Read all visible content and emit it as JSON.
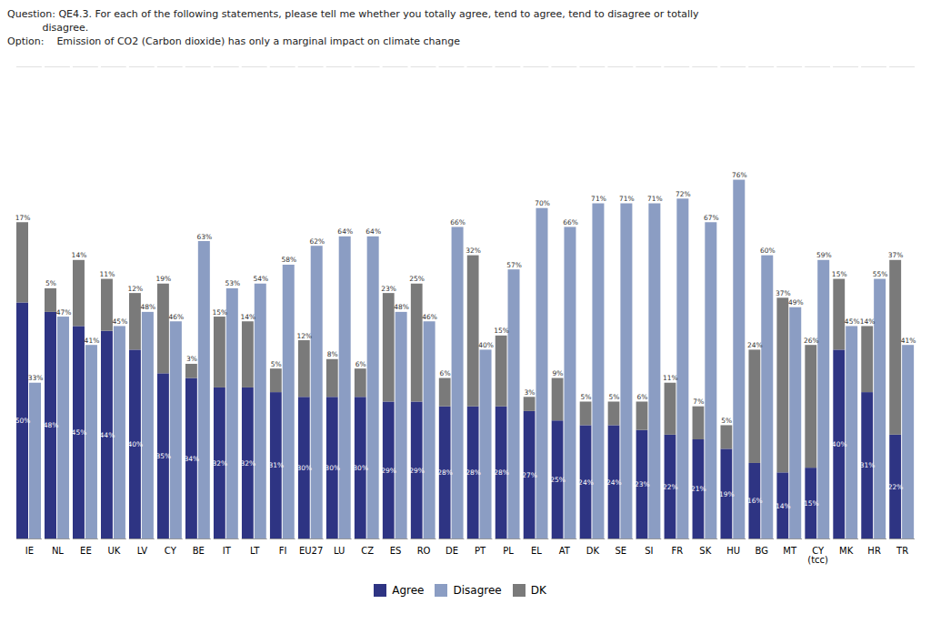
{
  "chart_data": {
    "type": "bar",
    "title": [
      "Question: QE4.3. For each of the following statements, please tell me whether you totally agree, tend to agree, tend to disagree or totally",
      "           disagree."
    ],
    "subtitle": "Option:    Emission of CO2 (Carbon dioxide) has only a marginal impact on climate change",
    "categories": [
      "IE",
      "NL",
      "EE",
      "UK",
      "LV",
      "CY",
      "BE",
      "IT",
      "LT",
      "FI",
      "EU27",
      "LU",
      "CZ",
      "ES",
      "RO",
      "DE",
      "PT",
      "PL",
      "EL",
      "AT",
      "DK",
      "SE",
      "SI",
      "FR",
      "SK",
      "HU",
      "BG",
      "MT",
      "CY\n(tcc)",
      "MK",
      "HR",
      "TR"
    ],
    "series": [
      {
        "name": "Agree",
        "color": "#2E3483",
        "stacked": true,
        "values": [
          50,
          48,
          45,
          44,
          40,
          35,
          34,
          32,
          32,
          31,
          30,
          30,
          30,
          29,
          29,
          28,
          28,
          28,
          27,
          25,
          24,
          24,
          23,
          22,
          21,
          19,
          16,
          14,
          15,
          40,
          31,
          22
        ],
        "value_labels": [
          "50%",
          "48%",
          "45%",
          "44%",
          "40%",
          "35%",
          "34%",
          "32%",
          "32%",
          "31%",
          "30%",
          "30%",
          "30%",
          "29%",
          "29%",
          "28%",
          "28%",
          "28%",
          "27%",
          "25%",
          "24%",
          "24%",
          "23%",
          "22%",
          "21%",
          "19%",
          "16%",
          "14%",
          "15%",
          "40%",
          "31%",
          "22%"
        ]
      },
      {
        "name": "Disagree",
        "color": "#8B9DC3",
        "stacked": false,
        "values": [
          33,
          47,
          41,
          45,
          48,
          46,
          63,
          53,
          54,
          58,
          62,
          64,
          64,
          48,
          46,
          66,
          40,
          57,
          70,
          66,
          71,
          71,
          71,
          72,
          67,
          76,
          60,
          49,
          59,
          45,
          55,
          41
        ],
        "value_labels": [
          "33%",
          "47%",
          "41%",
          "45%",
          "48%",
          "46%",
          "63%",
          "53%",
          "54%",
          "58%",
          "62%",
          "64%",
          "64%",
          "48%",
          "46%",
          "66%",
          "40%",
          "57%",
          "70%",
          "66%",
          "71%",
          "71%",
          "71%",
          "72%",
          "67%",
          "76%",
          "60%",
          "49%",
          "59%",
          "45%",
          "55%",
          "41%"
        ]
      },
      {
        "name": "DK",
        "color": "#7A7A7A",
        "stacked": true,
        "values": [
          17,
          5,
          14,
          11,
          12,
          19,
          3,
          15,
          14,
          5,
          12,
          8,
          6,
          23,
          25,
          6,
          32,
          15,
          3,
          9,
          5,
          5,
          6,
          11,
          7,
          5,
          24,
          37,
          26,
          15,
          14,
          37
        ],
        "value_labels": [
          "17%",
          "5%",
          "14%",
          "11%",
          "12%",
          "19%",
          "3%",
          "15%",
          "14%",
          "5%",
          "12%",
          "8%",
          "6%",
          "23%",
          "25%",
          "6%",
          "32%",
          "15%",
          "3%",
          "9%",
          "5%",
          "5%",
          "6%",
          "11%",
          "7%",
          "5%",
          "24%",
          "37%",
          "26%",
          "15%",
          "14%",
          "37%"
        ]
      }
    ],
    "ylim": [
      0,
      100
    ],
    "data_labels": true,
    "tick_labels": "x",
    "legend": "bottom"
  }
}
